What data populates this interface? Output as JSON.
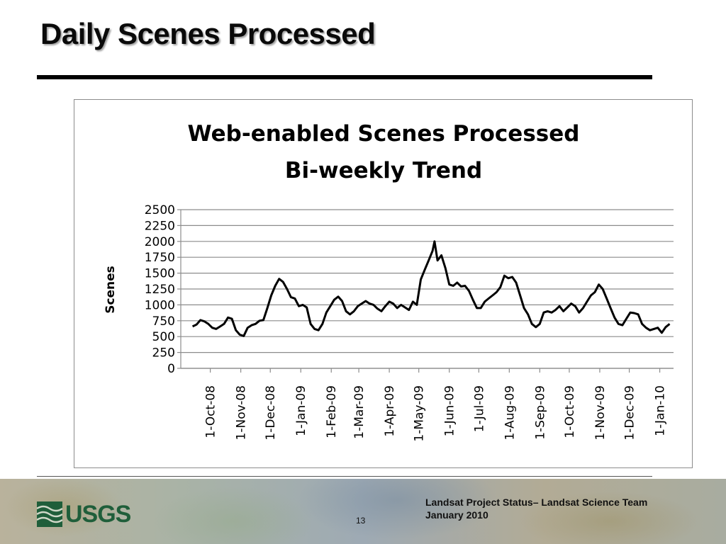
{
  "slide": {
    "title": "Daily Scenes Processed",
    "footer_line1": "Landsat Project Status– Landsat Science Team",
    "footer_line2": "January 2010",
    "page_number": "13",
    "logo_text": "USGS"
  },
  "colors": {
    "line": "#000000",
    "grid": "#8c8c8c",
    "logo": "#1f5e3a"
  },
  "chart_data": {
    "type": "line",
    "title_lines": [
      "Web-enabled Scenes Processed",
      "Bi-weekly Trend"
    ],
    "ylabel": "Scenes",
    "xlabel": "",
    "ylim": [
      0,
      2500
    ],
    "yticks": [
      0,
      250,
      500,
      750,
      1000,
      1250,
      1500,
      1750,
      2000,
      2250,
      2500
    ],
    "xlim": [
      "2008-09-01",
      "2010-01-15"
    ],
    "xticks": [
      {
        "date": "2008-10-01",
        "label": "1-Oct-08"
      },
      {
        "date": "2008-11-01",
        "label": "1-Nov-08"
      },
      {
        "date": "2008-12-01",
        "label": "1-Dec-08"
      },
      {
        "date": "2009-01-01",
        "label": "1-Jan-09"
      },
      {
        "date": "2009-02-01",
        "label": "1-Feb-09"
      },
      {
        "date": "2009-03-01",
        "label": "1-Mar-09"
      },
      {
        "date": "2009-04-01",
        "label": "1-Apr-09"
      },
      {
        "date": "2009-05-01",
        "label": "1-May-09"
      },
      {
        "date": "2009-06-01",
        "label": "1-Jun-09"
      },
      {
        "date": "2009-07-01",
        "label": "1-Jul-09"
      },
      {
        "date": "2009-08-01",
        "label": "1-Aug-09"
      },
      {
        "date": "2009-09-01",
        "label": "1-Sep-09"
      },
      {
        "date": "2009-10-01",
        "label": "1-Oct-09"
      },
      {
        "date": "2009-11-01",
        "label": "1-Nov-09"
      },
      {
        "date": "2009-12-01",
        "label": "1-Dec-09"
      },
      {
        "date": "2010-01-01",
        "label": "1-Jan-10"
      }
    ],
    "grid": true,
    "series": [
      {
        "points": [
          [
            "2008-09-13",
            660
          ],
          [
            "2008-09-17",
            690
          ],
          [
            "2008-09-21",
            760
          ],
          [
            "2008-09-25",
            740
          ],
          [
            "2008-09-29",
            700
          ],
          [
            "2008-10-03",
            640
          ],
          [
            "2008-10-07",
            620
          ],
          [
            "2008-10-11",
            660
          ],
          [
            "2008-10-15",
            700
          ],
          [
            "2008-10-19",
            800
          ],
          [
            "2008-10-23",
            780
          ],
          [
            "2008-10-27",
            600
          ],
          [
            "2008-10-31",
            530
          ],
          [
            "2008-11-04",
            510
          ],
          [
            "2008-11-08",
            640
          ],
          [
            "2008-11-12",
            680
          ],
          [
            "2008-11-16",
            700
          ],
          [
            "2008-11-20",
            750
          ],
          [
            "2008-11-24",
            760
          ],
          [
            "2008-11-28",
            950
          ],
          [
            "2008-12-02",
            1150
          ],
          [
            "2008-12-06",
            1300
          ],
          [
            "2008-12-10",
            1410
          ],
          [
            "2008-12-14",
            1360
          ],
          [
            "2008-12-18",
            1250
          ],
          [
            "2008-12-22",
            1120
          ],
          [
            "2008-12-26",
            1100
          ],
          [
            "2008-12-30",
            980
          ],
          [
            "2009-01-03",
            1000
          ],
          [
            "2009-01-07",
            960
          ],
          [
            "2009-01-11",
            700
          ],
          [
            "2009-01-15",
            620
          ],
          [
            "2009-01-19",
            600
          ],
          [
            "2009-01-23",
            700
          ],
          [
            "2009-01-27",
            880
          ],
          [
            "2009-01-31",
            980
          ],
          [
            "2009-02-04",
            1080
          ],
          [
            "2009-02-08",
            1130
          ],
          [
            "2009-02-12",
            1060
          ],
          [
            "2009-02-16",
            900
          ],
          [
            "2009-02-20",
            850
          ],
          [
            "2009-02-24",
            900
          ],
          [
            "2009-02-28",
            980
          ],
          [
            "2009-03-04",
            1020
          ],
          [
            "2009-03-08",
            1060
          ],
          [
            "2009-03-12",
            1020
          ],
          [
            "2009-03-16",
            1000
          ],
          [
            "2009-03-20",
            940
          ],
          [
            "2009-03-24",
            900
          ],
          [
            "2009-03-28",
            980
          ],
          [
            "2009-04-01",
            1050
          ],
          [
            "2009-04-05",
            1020
          ],
          [
            "2009-04-09",
            950
          ],
          [
            "2009-04-13",
            1000
          ],
          [
            "2009-04-17",
            960
          ],
          [
            "2009-04-21",
            920
          ],
          [
            "2009-04-25",
            1050
          ],
          [
            "2009-04-29",
            1000
          ],
          [
            "2009-05-03",
            1400
          ],
          [
            "2009-05-07",
            1550
          ],
          [
            "2009-05-11",
            1700
          ],
          [
            "2009-05-15",
            1850
          ],
          [
            "2009-05-17",
            2000
          ],
          [
            "2009-05-20",
            1700
          ],
          [
            "2009-05-24",
            1780
          ],
          [
            "2009-05-28",
            1580
          ],
          [
            "2009-06-01",
            1320
          ],
          [
            "2009-06-05",
            1300
          ],
          [
            "2009-06-09",
            1350
          ],
          [
            "2009-06-13",
            1290
          ],
          [
            "2009-06-17",
            1300
          ],
          [
            "2009-06-21",
            1220
          ],
          [
            "2009-06-25",
            1080
          ],
          [
            "2009-06-29",
            950
          ],
          [
            "2009-07-03",
            950
          ],
          [
            "2009-07-07",
            1050
          ],
          [
            "2009-07-11",
            1100
          ],
          [
            "2009-07-15",
            1150
          ],
          [
            "2009-07-19",
            1200
          ],
          [
            "2009-07-23",
            1280
          ],
          [
            "2009-07-27",
            1460
          ],
          [
            "2009-07-31",
            1420
          ],
          [
            "2009-08-04",
            1440
          ],
          [
            "2009-08-08",
            1350
          ],
          [
            "2009-08-12",
            1150
          ],
          [
            "2009-08-16",
            950
          ],
          [
            "2009-08-20",
            850
          ],
          [
            "2009-08-24",
            700
          ],
          [
            "2009-08-28",
            650
          ],
          [
            "2009-09-01",
            700
          ],
          [
            "2009-09-05",
            880
          ],
          [
            "2009-09-09",
            900
          ],
          [
            "2009-09-13",
            880
          ],
          [
            "2009-09-17",
            920
          ],
          [
            "2009-09-21",
            980
          ],
          [
            "2009-09-25",
            900
          ],
          [
            "2009-09-29",
            960
          ],
          [
            "2009-10-03",
            1020
          ],
          [
            "2009-10-07",
            980
          ],
          [
            "2009-10-11",
            880
          ],
          [
            "2009-10-15",
            950
          ],
          [
            "2009-10-19",
            1050
          ],
          [
            "2009-10-23",
            1150
          ],
          [
            "2009-10-27",
            1200
          ],
          [
            "2009-10-31",
            1320
          ],
          [
            "2009-11-04",
            1250
          ],
          [
            "2009-11-08",
            1100
          ],
          [
            "2009-11-12",
            950
          ],
          [
            "2009-11-16",
            800
          ],
          [
            "2009-11-20",
            700
          ],
          [
            "2009-11-24",
            680
          ],
          [
            "2009-11-28",
            780
          ],
          [
            "2009-12-02",
            880
          ],
          [
            "2009-12-06",
            870
          ],
          [
            "2009-12-10",
            850
          ],
          [
            "2009-12-14",
            700
          ],
          [
            "2009-12-18",
            640
          ],
          [
            "2009-12-22",
            600
          ],
          [
            "2009-12-26",
            620
          ],
          [
            "2009-12-30",
            640
          ],
          [
            "2010-01-03",
            560
          ],
          [
            "2010-01-07",
            650
          ],
          [
            "2010-01-11",
            700
          ]
        ]
      }
    ]
  }
}
